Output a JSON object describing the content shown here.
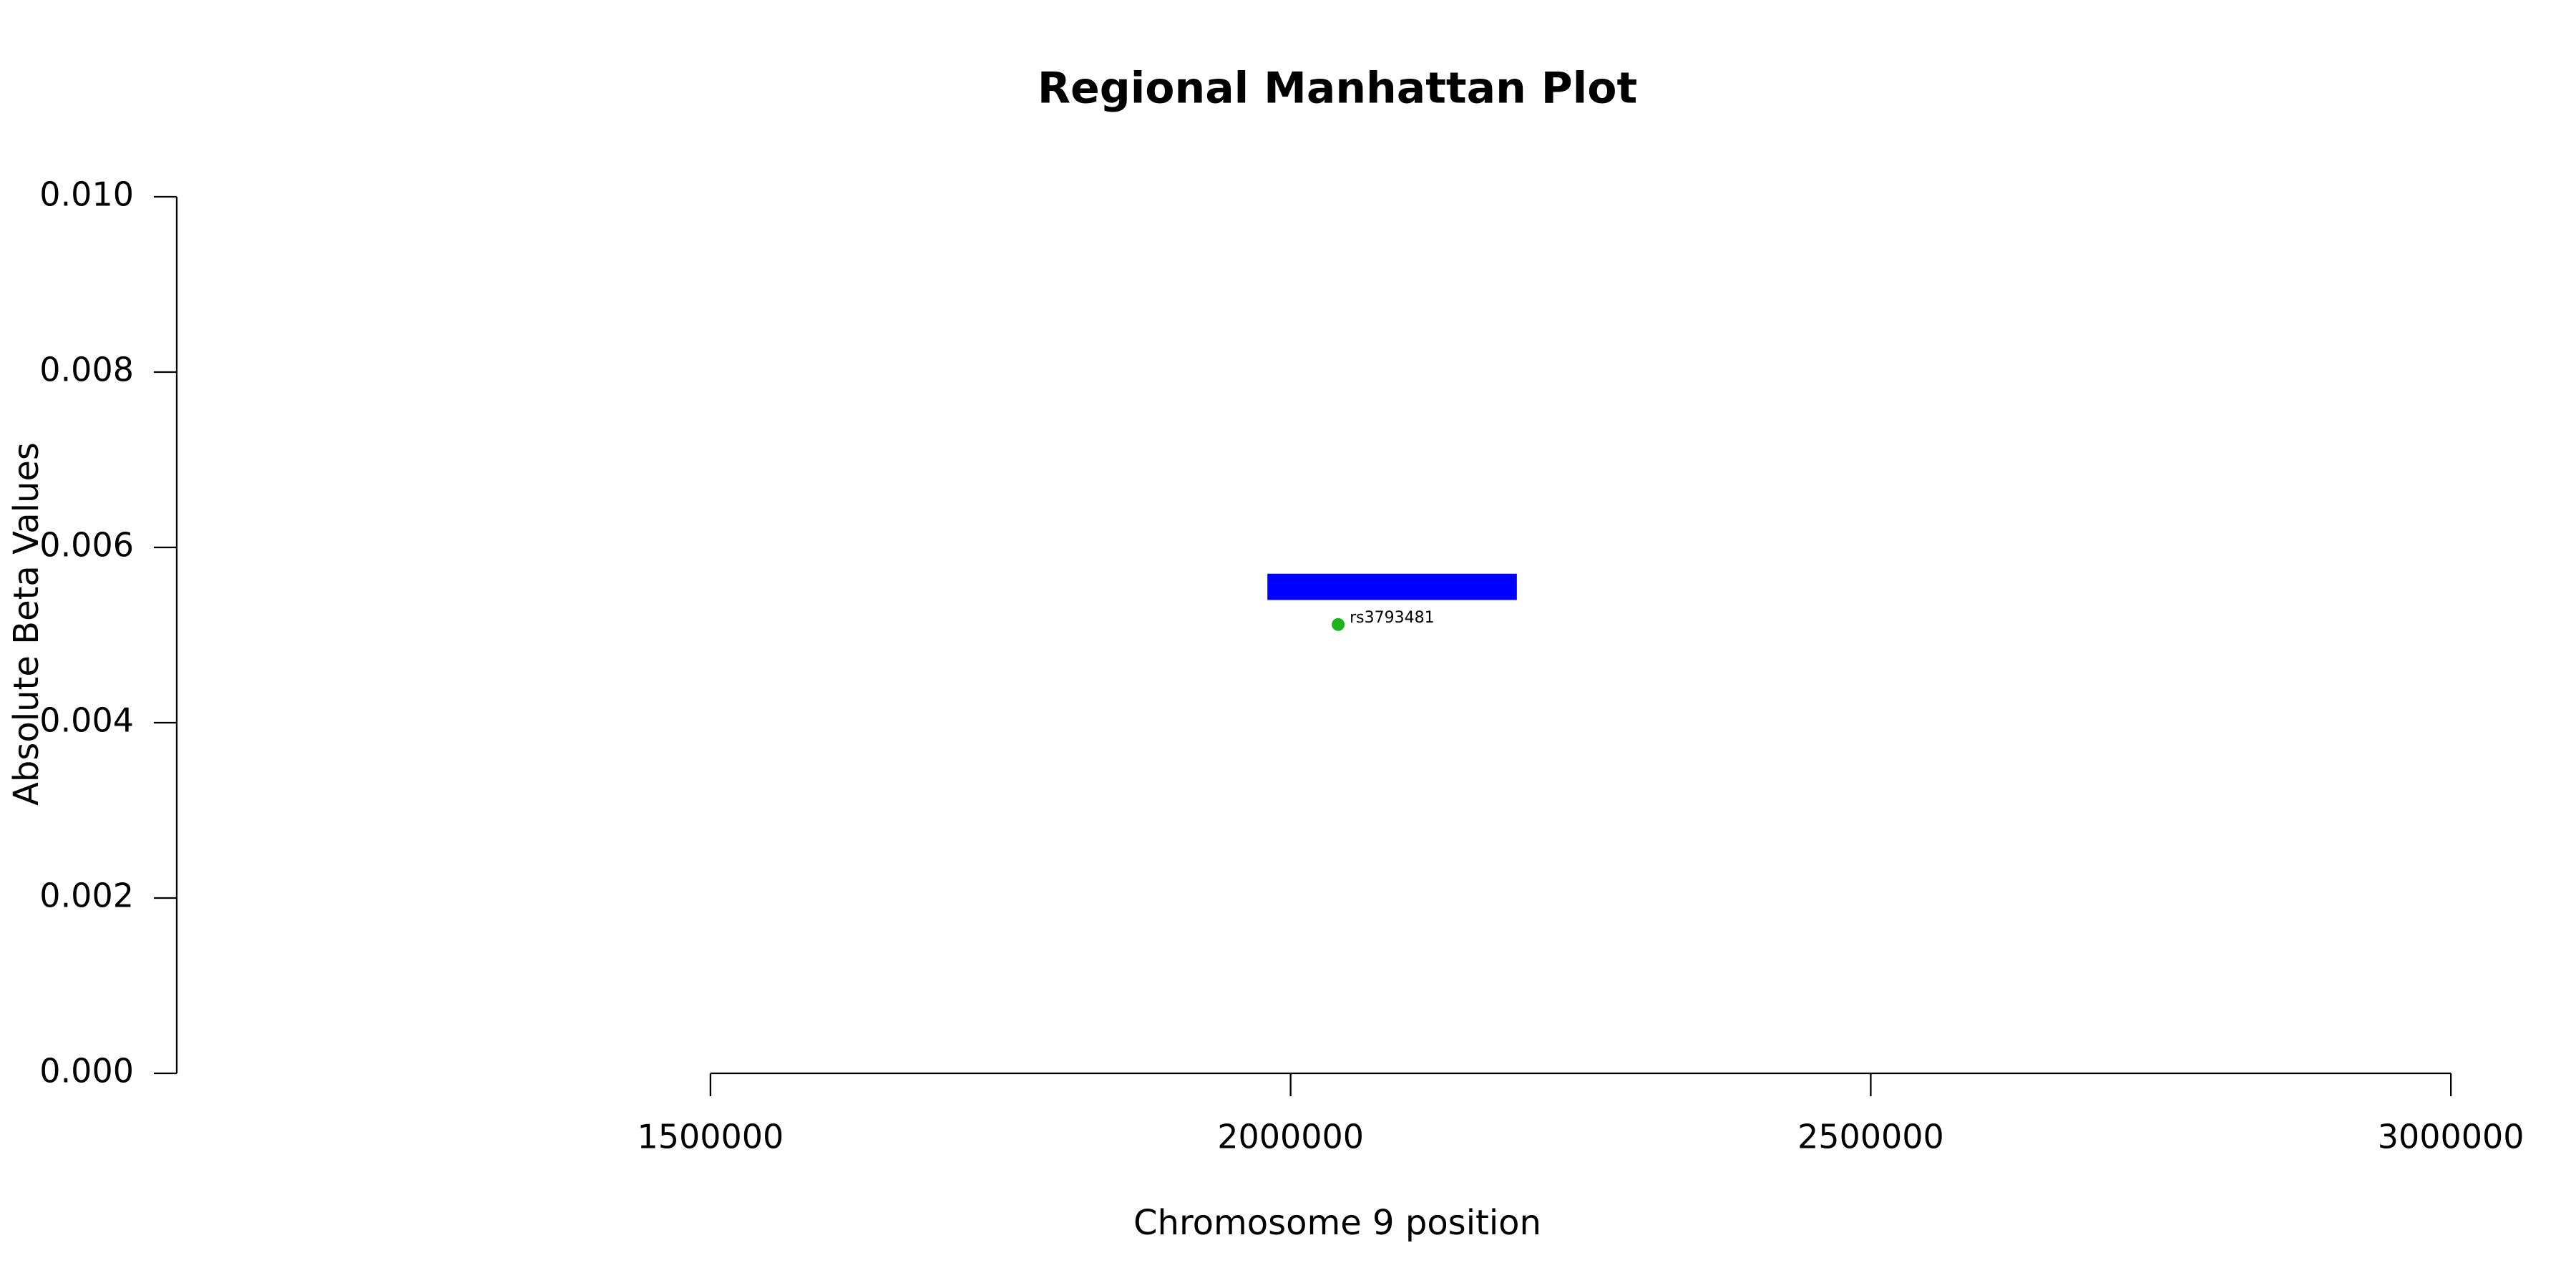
{
  "chart_data": {
    "type": "scatter",
    "title": "Regional Manhattan Plot",
    "x_label": "Chromosome 9 position",
    "y_label": "Absolute Beta Values",
    "x": [
      2041000
    ],
    "values": [
      0.00512
    ],
    "point_labels": [
      "rs3793481"
    ],
    "color": "#1db31d",
    "regions": [
      {
        "x": [
          1980000,
          2195000
        ],
        "y": [
          0.0054,
          0.0057
        ],
        "color": "#0000ff"
      }
    ],
    "xlim": [
      1040000,
      3040000
    ],
    "xticks": [
      1500000,
      2000000,
      2500000,
      3000000
    ],
    "ylim": [
      0,
      0.01
    ],
    "yticks": [
      {
        "value": 0,
        "label": "0.000"
      },
      {
        "value": 0.002,
        "label": "0.002"
      },
      {
        "value": 0.004,
        "label": "0.004"
      },
      {
        "value": 0.006,
        "label": "0.006"
      },
      {
        "value": 0.008,
        "label": "0.008"
      },
      {
        "value": 0.01,
        "label": "0.010"
      }
    ],
    "grid": false
  }
}
